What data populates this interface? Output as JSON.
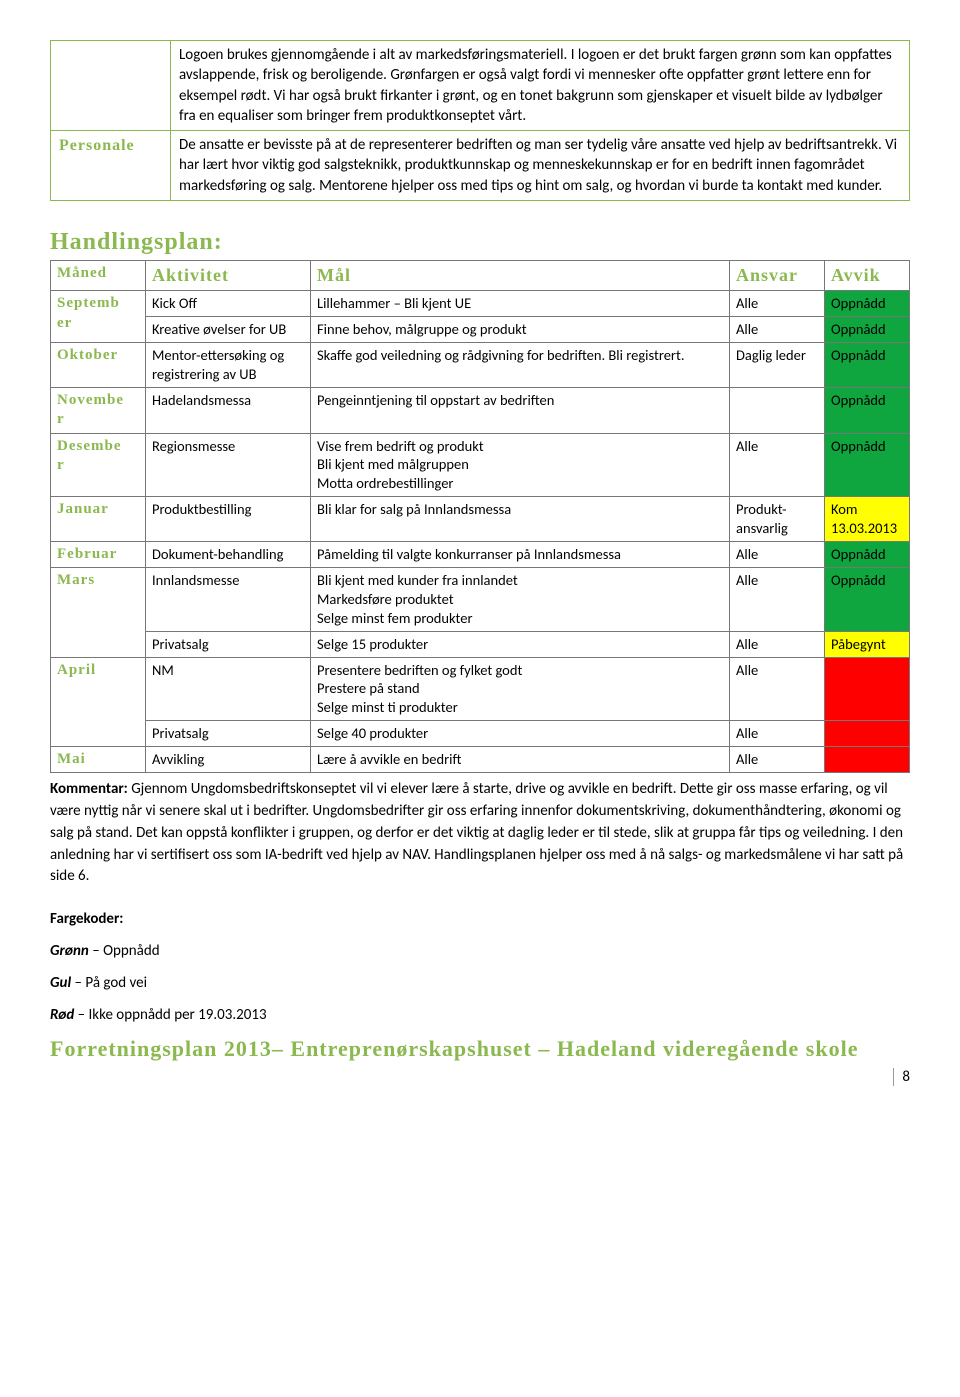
{
  "colors": {
    "olive": "#8bb84f",
    "green": "#0fa53f",
    "yellow": "#ffff00",
    "red": "#ff0000"
  },
  "top_table": {
    "row1_label": "",
    "row1_text": "Logoen brukes gjennomgående i alt av markedsføringsmateriell. I logoen er det brukt fargen grønn som kan oppfattes avslappende, frisk og beroligende. Grønfargen er også valgt fordi vi mennesker ofte oppfatter grønt lettere enn for eksempel rødt. Vi har også brukt firkanter i grønt, og en tonet bakgrunn som gjenskaper et visuelt bilde av lydbølger fra en equaliser som bringer frem produktkonseptet vårt.",
    "row2_label": "Personale",
    "row2_text": "De ansatte er bevisste på at de representerer bedriften og man ser tydelig våre ansatte ved hjelp av bedriftsantrekk. Vi har lært hvor viktig god salgsteknikk, produktkunnskap og menneskekunnskap er for en bedrift innen fagområdet markedsføring og salg. Mentorene hjelper oss med tips og hint om salg, og hvordan vi burde ta kontakt med kunder."
  },
  "section_title": "Handlingsplan:",
  "plan_headers": {
    "month": "Måned",
    "activity": "Aktivitet",
    "goal": "Mål",
    "ansvar": "Ansvar",
    "avvik": "Avvik"
  },
  "rows": [
    {
      "month": "Septemb\ner",
      "month_rowspan": 2,
      "activity": "Kick Off",
      "goal": "Lillehammer – Bli kjent UE",
      "ansvar": "Alle",
      "avvik": "Oppnådd",
      "avvik_bg": "#0fa53f"
    },
    {
      "activity": "Kreative øvelser for UB",
      "goal": "Finne behov, målgruppe og produkt",
      "ansvar": "Alle",
      "avvik": "Oppnådd",
      "avvik_bg": "#0fa53f"
    },
    {
      "month": "Oktober",
      "activity": "Mentor-ettersøking og registrering av UB",
      "goal": "Skaffe god veiledning og rådgivning for bedriften. Bli registrert.",
      "ansvar": "Daglig leder",
      "avvik": "Oppnådd",
      "avvik_bg": "#0fa53f"
    },
    {
      "month": "Novembe\nr",
      "activity": "Hadelandsmessa",
      "goal": "Pengeinntjening til oppstart av bedriften",
      "ansvar": "",
      "avvik": "Oppnådd",
      "avvik_bg": "#0fa53f"
    },
    {
      "month": "Desembe\nr",
      "activity": "Regionsmesse",
      "goal": "Vise frem bedrift og produkt\nBli kjent med målgruppen\nMotta ordrebestillinger",
      "ansvar": "Alle",
      "avvik": "Oppnådd",
      "avvik_bg": "#0fa53f"
    },
    {
      "month": "Januar",
      "activity": "Produktbestilling",
      "goal": "Bli klar for salg på Innlandsmessa",
      "ansvar": "Produkt-\nansvarlig",
      "avvik": "Kom 13.03.2013",
      "avvik_bg": "#ffff00"
    },
    {
      "month": "Februar",
      "activity": "Dokument-behandling",
      "goal": "Påmelding til valgte konkurranser på Innlandsmessa",
      "ansvar": "Alle",
      "avvik": "Oppnådd",
      "avvik_bg": "#0fa53f"
    },
    {
      "month": "Mars",
      "month_rowspan": 2,
      "activity": "Innlandsmesse",
      "goal": "Bli kjent med kunder fra innlandet\nMarkedsføre produktet\nSelge minst fem produkter",
      "ansvar": "Alle",
      "avvik": "Oppnådd",
      "avvik_bg": "#0fa53f"
    },
    {
      "activity": "Privatsalg",
      "goal": "Selge 15 produkter",
      "ansvar": "Alle",
      "avvik": "Påbegynt",
      "avvik_bg": "#ffff00"
    },
    {
      "month": "April",
      "month_rowspan": 2,
      "activity": "NM",
      "goal": "Presentere bedriften og fylket godt\nPrestere på stand\nSelge minst ti produkter",
      "ansvar": "Alle",
      "avvik": "",
      "avvik_bg": "#ff0000"
    },
    {
      "activity": "Privatsalg",
      "goal": "Selge 40 produkter",
      "ansvar": "Alle",
      "avvik": "",
      "avvik_bg": "#ff0000"
    },
    {
      "month": "Mai",
      "activity": "Avvikling",
      "goal": "Lære å avvikle en bedrift",
      "ansvar": "Alle",
      "avvik": "",
      "avvik_bg": "#ff0000"
    }
  ],
  "comment_label": "Kommentar:",
  "comment_text": " Gjennom Ungdomsbedriftskonseptet vil vi elever lære å starte, drive og avvikle en bedrift. Dette gir oss masse erfaring, og vil være nyttig når vi senere skal ut i bedrifter. Ungdomsbedrifter gir oss erfaring innenfor dokumentskriving, dokumenthåndtering, økonomi og salg på stand. Det kan oppstå konflikter i gruppen, og derfor er det viktig at daglig leder er til stede, slik at gruppa får tips og veiledning. I den anledning har vi sertifisert oss som IA-bedrift ved hjelp av NAV. Handlingsplanen hjelper oss med å nå salgs- og markedsmålene vi har satt på side 6.",
  "fargekoder": "Fargekoder:",
  "legend": {
    "green_label": "Grønn",
    "green_text": " – Oppnådd",
    "yellow_label": "Gul",
    "yellow_text": " – På god vei",
    "red_label": "Rød",
    "red_text": " – Ikke oppnådd per 19.03.2013"
  },
  "footer": "Forretningsplan 2013– Entreprenørskapshuset – Hadeland videregående skole",
  "page_number": "8"
}
